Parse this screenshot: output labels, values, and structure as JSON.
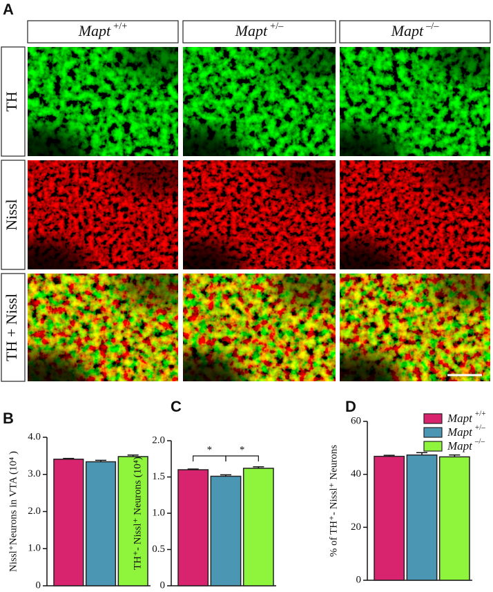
{
  "panel_labels": [
    "A",
    "B",
    "C",
    "D"
  ],
  "columns": [
    {
      "name": "Mapt",
      "superscript": "+/+"
    },
    {
      "name": "Mapt",
      "superscript": "+/–"
    },
    {
      "name": "Mapt",
      "superscript": "–/–"
    }
  ],
  "rows": [
    "TH",
    "Nissl",
    "TH + Nissl"
  ],
  "chart_data": [
    {
      "type": "bar",
      "ylabel": "Nissl⁺Neurons in  VTA (10⁴ )",
      "ylim": [
        0,
        4
      ],
      "yticks": [
        0,
        {
          "value": 1,
          "label": "1.0"
        },
        {
          "value": 2,
          "label": "2.0"
        },
        {
          "value": 3,
          "label": "3.0"
        },
        {
          "value": 4,
          "label": "4.0"
        }
      ],
      "series": [
        {
          "color": "#d8246f",
          "values": [
            3.41
          ],
          "errors": [
            0.02
          ]
        },
        {
          "color": "#4b97b3",
          "values": [
            3.34
          ],
          "errors": [
            0.04
          ]
        },
        {
          "color": "#8ef43c",
          "values": [
            3.48
          ],
          "errors": [
            0.04
          ]
        }
      ]
    },
    {
      "type": "bar",
      "ylabel": "TH⁺- Nissl⁺ Neurons  (10⁴)",
      "ylim": [
        0,
        2
      ],
      "yticks": [
        0,
        0.5,
        {
          "value": 1,
          "label": "1.0"
        },
        1.5,
        {
          "value": 2,
          "label": "2.0"
        }
      ],
      "series": [
        {
          "color": "#d8246f",
          "values": [
            1.6
          ],
          "errors": [
            0.01
          ]
        },
        {
          "color": "#4b97b3",
          "values": [
            1.51
          ],
          "errors": [
            0.02
          ]
        },
        {
          "color": "#8ef43c",
          "values": [
            1.62
          ],
          "errors": [
            0.02
          ]
        }
      ],
      "comparisons": [
        {
          "label": "*",
          "pair": [
            0,
            1
          ]
        },
        {
          "label": "*",
          "pair": [
            1,
            2
          ]
        }
      ]
    },
    {
      "type": "bar",
      "ylabel": "% of TH⁺- Nissl⁺ Neurons",
      "ylim": [
        0,
        60
      ],
      "yticks": [
        0,
        20,
        40,
        60
      ],
      "series": [
        {
          "name": "Mapt",
          "superscript": "+/+",
          "color": "#d8246f",
          "values": [
            46.8
          ],
          "errors": [
            0.4
          ]
        },
        {
          "name": "Mapt",
          "superscript": "+/–",
          "color": "#4b97b3",
          "values": [
            47.3
          ],
          "errors": [
            0.9
          ]
        },
        {
          "name": "Mapt",
          "superscript": "–/–",
          "color": "#8ef43c",
          "values": [
            46.6
          ],
          "errors": [
            0.7
          ]
        }
      ]
    }
  ]
}
